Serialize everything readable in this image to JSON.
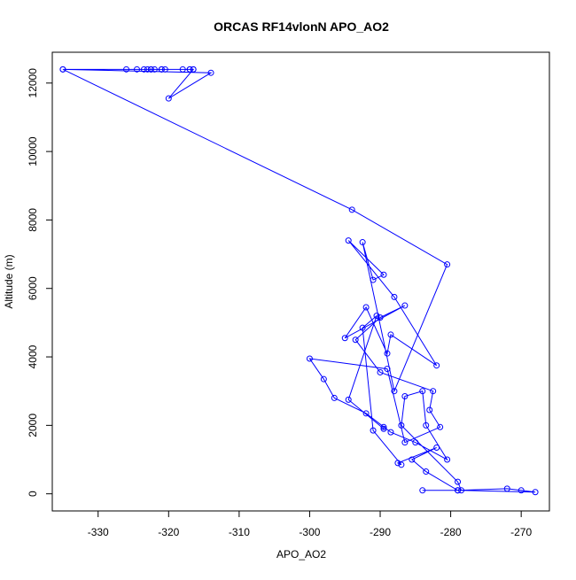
{
  "chart_data": {
    "type": "line",
    "title": "ORCAS RF14vlonN APO_AO2",
    "xlabel": "APO_AO2",
    "ylabel": "Altitude (m)",
    "xlim": [
      -336.5,
      -266.0
    ],
    "ylim": [
      -500,
      12900
    ],
    "x_ticks": [
      -330,
      -320,
      -310,
      -300,
      -290,
      -280,
      -270
    ],
    "y_ticks": [
      0,
      2000,
      4000,
      6000,
      8000,
      10000,
      12000
    ],
    "series_color": "#0000ff",
    "marker": "open-circle",
    "grid": false,
    "legend": "none",
    "series": [
      {
        "x": [
          -316.5,
          -322.5,
          -326.0,
          -323.0,
          -317.0,
          -324.5,
          -321.0,
          -335.0,
          -314.0,
          -320.0,
          -316.5,
          -322.0,
          -318.0,
          -320.5,
          -322.5,
          -323.5,
          -317.0,
          -321.0,
          -335.0,
          -294.0,
          -280.5,
          -288.0,
          -292.5,
          -291.0,
          -289.5,
          -294.5,
          -288.0,
          -282.0,
          -288.5,
          -289.0,
          -292.0,
          -295.0,
          -286.5,
          -290.0,
          -293.5,
          -290.0,
          -282.5,
          -283.0,
          -281.5,
          -286.5,
          -289.0,
          -300.0,
          -298.0,
          -296.5,
          -292.0,
          -288.5,
          -285.0,
          -280.5,
          -283.5,
          -284.0,
          -286.5,
          -287.0,
          -279.0,
          -278.5,
          -268.0,
          -270.0,
          -272.0,
          -279.0,
          -284.0,
          -279.0,
          -283.5,
          -285.5,
          -282.0,
          -287.5,
          -287.0,
          -291.0,
          -292.5,
          -290.5,
          -294.5,
          -289.5,
          -289.5
        ],
        "y": [
          12400,
          12400,
          12400,
          12400,
          12400,
          12400,
          12400,
          12400,
          12300,
          11550,
          12400,
          12400,
          12400,
          12400,
          12400,
          12400,
          12400,
          12400,
          12400,
          8300,
          6700,
          3000,
          7350,
          6250,
          6400,
          7400,
          5750,
          3750,
          4650,
          4100,
          5450,
          4550,
          5500,
          5150,
          4500,
          3550,
          3000,
          2450,
          1950,
          1500,
          3650,
          3950,
          3350,
          2800,
          2350,
          1800,
          1500,
          1000,
          2000,
          3000,
          2850,
          2000,
          350,
          100,
          50,
          100,
          150,
          100,
          100,
          100,
          650,
          1000,
          1350,
          900,
          850,
          1850,
          4850,
          5200,
          2750,
          1900,
          1950
        ]
      }
    ]
  }
}
